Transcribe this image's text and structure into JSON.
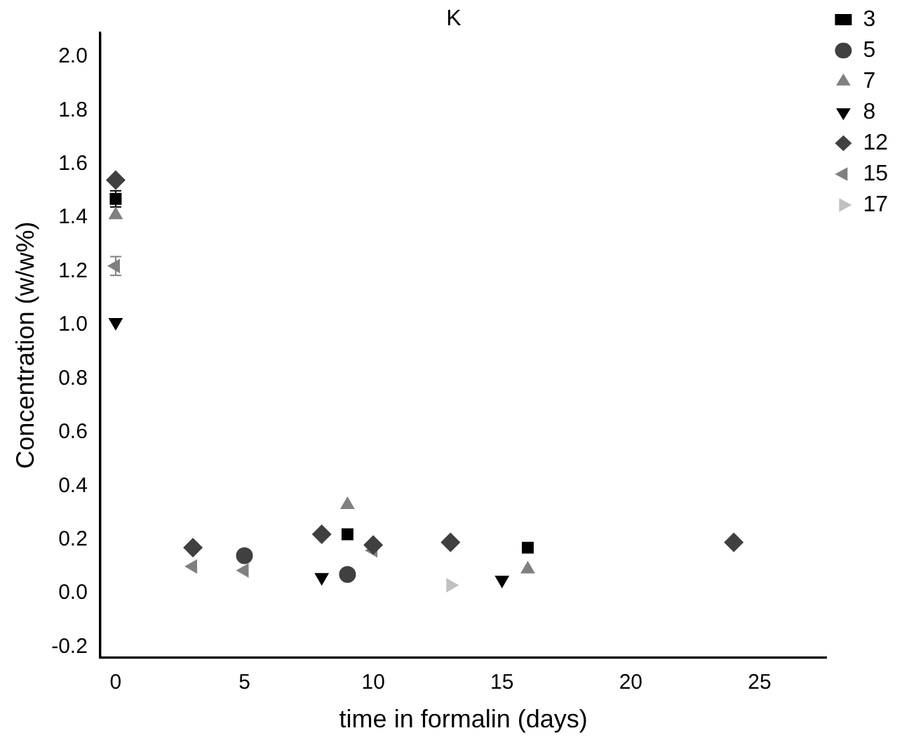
{
  "chart_data": {
    "type": "scatter",
    "title": "K",
    "xlabel": "time in formalin (days)",
    "ylabel": "Concentration (w/w%)",
    "xlim": [
      -0.6,
      27.6
    ],
    "xticks": [
      0,
      5,
      10,
      15,
      20,
      25
    ],
    "ylim": [
      -0.24,
      2.09
    ],
    "yticks": [
      {
        "value": -0.2,
        "label": "-0.2"
      },
      {
        "value": 0,
        "label": "0.0"
      },
      {
        "value": 0.2,
        "label": "0.2"
      },
      {
        "value": 0.4,
        "label": "0.4"
      },
      {
        "value": 0.6,
        "label": "0.6"
      },
      {
        "value": 0.8,
        "label": "0.8"
      },
      {
        "value": 1,
        "label": "1.0"
      },
      {
        "value": 1.2,
        "label": "1.2"
      },
      {
        "value": 1.4,
        "label": "1.4"
      },
      {
        "value": 1.6,
        "label": "1.6"
      },
      {
        "value": 1.8,
        "label": "1.8"
      },
      {
        "value": 2,
        "label": "2.0"
      }
    ],
    "grid": false,
    "legend": "top right",
    "series": [
      {
        "name": "3",
        "color": "#000000",
        "marker": "square",
        "x": [
          0,
          9,
          16
        ],
        "values": [
          1.47,
          0.22,
          0.17
        ],
        "errors": [
          0.03,
          null,
          null
        ]
      },
      {
        "name": "5",
        "color": "#404040",
        "marker": "circle",
        "x": [
          5,
          9
        ],
        "values": [
          0.14,
          0.07
        ]
      },
      {
        "name": "7",
        "color": "#808080",
        "marker": "triangle",
        "x": [
          0,
          9,
          16
        ],
        "values": [
          1.41,
          0.33,
          0.09
        ]
      },
      {
        "name": "8",
        "color": "#000000",
        "marker": "triangle-down",
        "x": [
          0,
          8,
          15
        ],
        "values": [
          1.01,
          0.06,
          0.05
        ]
      },
      {
        "name": "12",
        "color": "#404040",
        "marker": "diamond",
        "x": [
          0,
          3,
          8,
          10,
          13,
          24
        ],
        "values": [
          1.54,
          0.17,
          0.22,
          0.18,
          0.19,
          0.19
        ]
      },
      {
        "name": "15",
        "color": "#808080",
        "marker": "triangle-left",
        "x": [
          0,
          3,
          5,
          10
        ],
        "values": [
          1.22,
          0.1,
          0.085,
          0.16
        ],
        "errors": [
          0.035,
          null,
          null,
          null
        ]
      },
      {
        "name": "17",
        "color": "#c0c0c0",
        "marker": "triangle-right",
        "x": [
          13
        ],
        "values": [
          0.03
        ]
      }
    ]
  }
}
